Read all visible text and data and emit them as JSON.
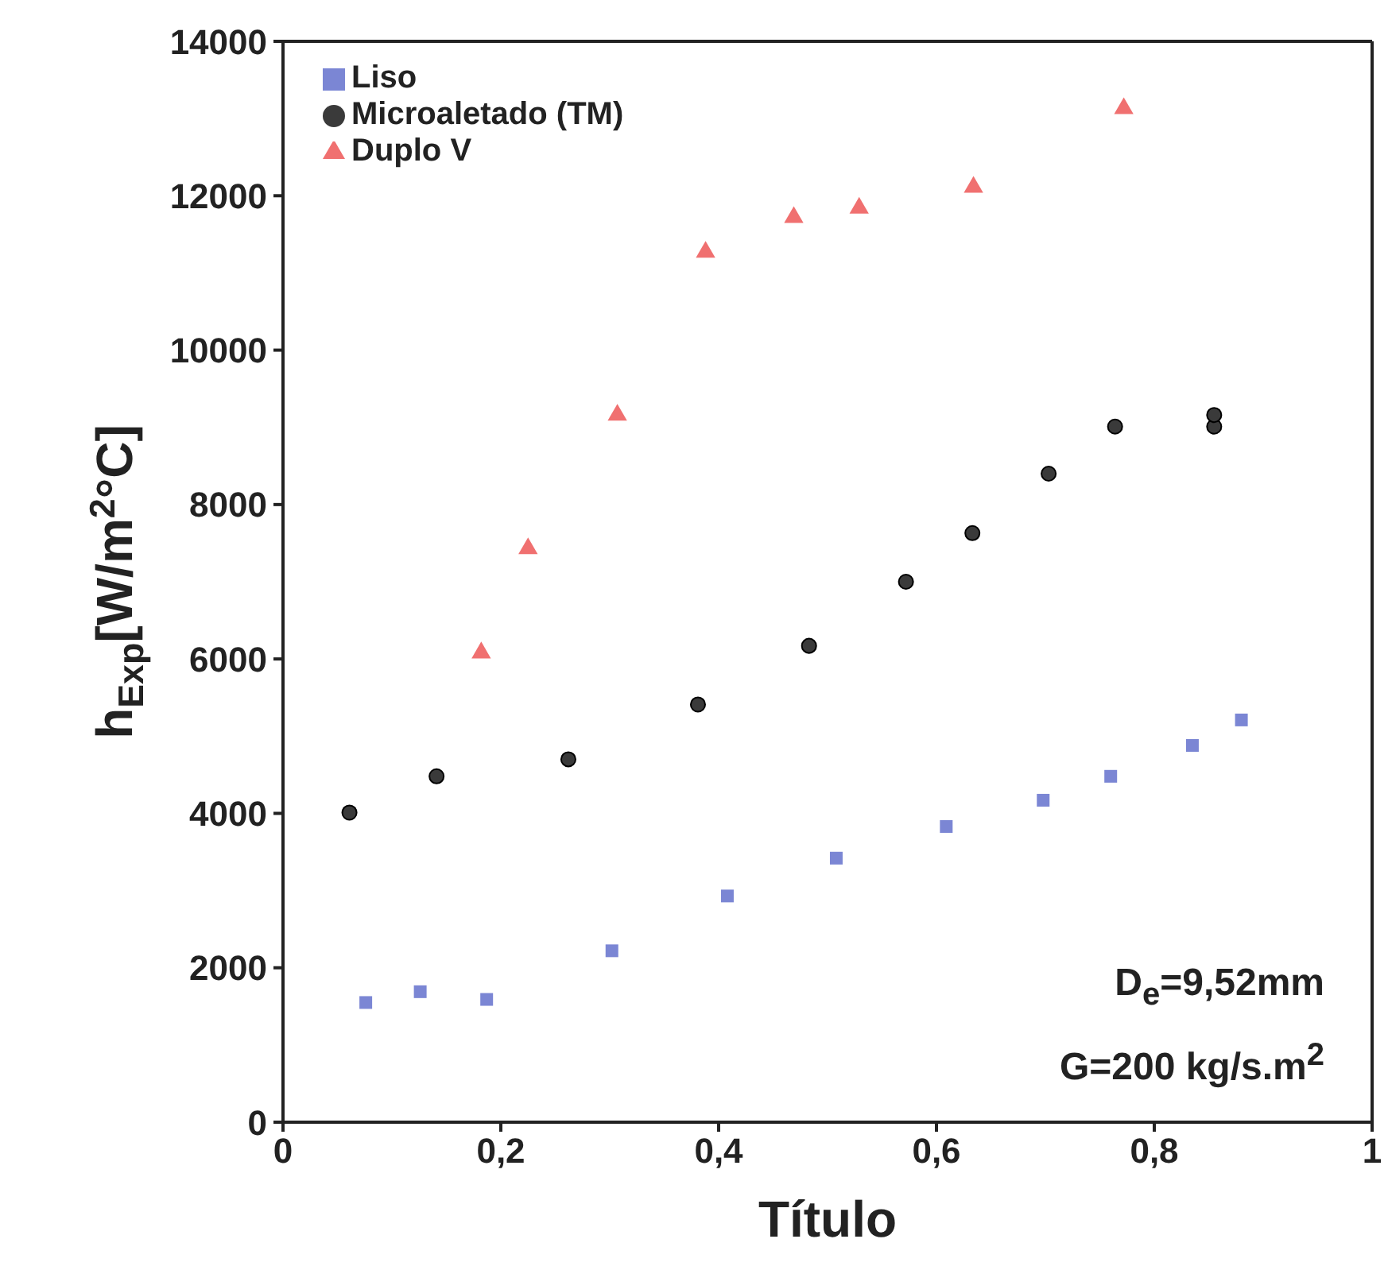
{
  "chart_data": {
    "type": "scatter",
    "xlabel": "Título",
    "ylabel": "h$_{Exp}$[W/m$^{2}$°C]",
    "xlim": [
      0,
      1
    ],
    "xticks": [
      0,
      {
        "value": 0.2,
        "label": "0,2"
      },
      {
        "value": 0.4,
        "label": "0,4"
      },
      {
        "value": 0.6,
        "label": "0,6"
      },
      {
        "value": 0.8,
        "label": "0,8"
      },
      1
    ],
    "ylim": [
      0,
      14000
    ],
    "yticks": [
      0,
      2000,
      4000,
      6000,
      8000,
      10000,
      12000,
      14000
    ],
    "legend": "top left",
    "annotations": [
      "D$_{e}$=9,52mm",
      "G=200 kg/s.m$^{2}$"
    ],
    "series": [
      {
        "name": "Liso",
        "color": "#7b86d4",
        "marker": "square",
        "x": [
          0.076,
          0.126,
          0.187,
          0.302,
          0.408,
          0.508,
          0.609,
          0.698,
          0.76,
          0.835,
          0.88
        ],
        "values": [
          1550,
          1690,
          1590,
          2220,
          2930,
          3420,
          3830,
          4170,
          4480,
          4880,
          5210
        ]
      },
      {
        "name": "Microaletado (TM)",
        "color": "#3a3a3a",
        "marker": "circle",
        "x": [
          0.061,
          0.141,
          0.262,
          0.381,
          0.483,
          0.572,
          0.633,
          0.703,
          0.764,
          0.855,
          0.855
        ],
        "values": [
          4010,
          4480,
          4700,
          5410,
          6170,
          7000,
          7630,
          8400,
          9010,
          9010,
          9160
        ]
      },
      {
        "name": "Duplo V",
        "color": "#f07070",
        "marker": "triangle",
        "x": [
          0.182,
          0.225,
          0.307,
          0.388,
          0.469,
          0.529,
          0.634,
          0.772
        ],
        "values": [
          6080,
          7430,
          9160,
          11270,
          11720,
          11840,
          12110,
          13130
        ]
      }
    ]
  }
}
